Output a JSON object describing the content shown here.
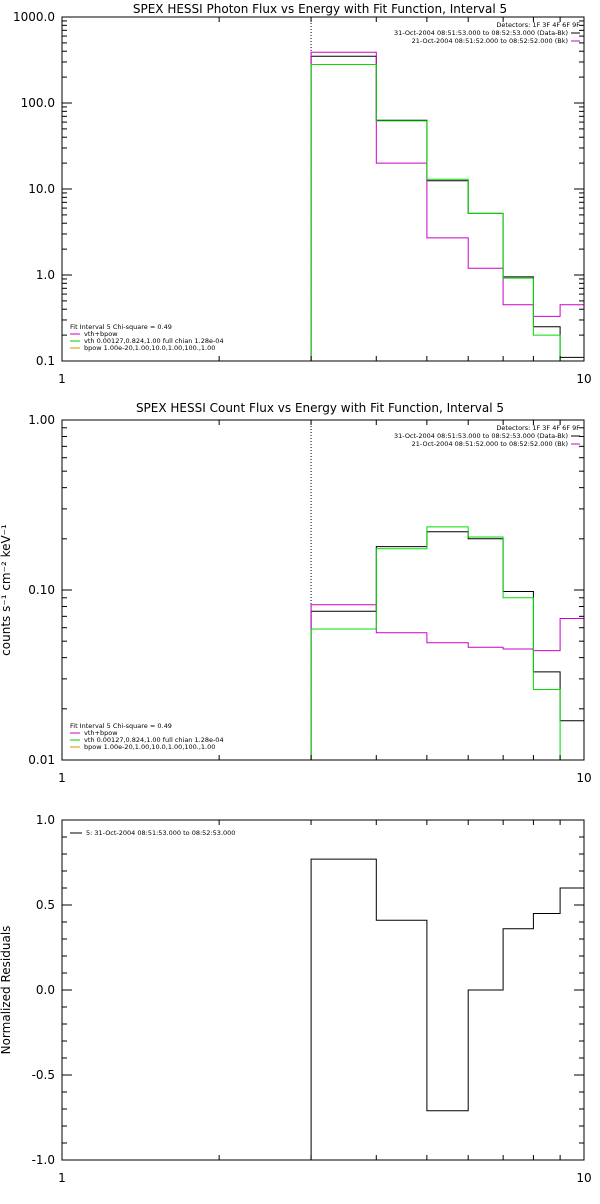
{
  "colors": {
    "background": "#ffffff",
    "axes": "#000000",
    "data": "#000000",
    "model": "#00dd00",
    "background_model": "#cc00cc",
    "vth_legend": "#00cc00",
    "bpow_legend": "#cc9900"
  },
  "chart_data": [
    {
      "type": "line",
      "style": "step",
      "title": "SPEX HESSI Photon Flux vs Energy with Fit Function, Interval 5",
      "xlabel": "",
      "ylabel": "",
      "xscale": "log",
      "yscale": "log",
      "xlim": [
        1,
        10
      ],
      "ylim": [
        0.1,
        1000
      ],
      "x_ticks": [
        "1",
        "10"
      ],
      "y_ticks": [
        "0.1",
        "1.0",
        "10.0",
        "100.0",
        "1000.0"
      ],
      "vline_x": 3,
      "edges": [
        3,
        4,
        5,
        6,
        7,
        8,
        9,
        10
      ],
      "series": [
        {
          "color": "#000000",
          "values": [
            350,
            63,
            12.5,
            5.2,
            0.95,
            0.25,
            0.11
          ]
        },
        {
          "color": "#cc00cc",
          "values": [
            390,
            20,
            2.7,
            1.2,
            0.45,
            0.33,
            0.45
          ]
        },
        {
          "color": "#00dd00",
          "values": [
            280,
            62,
            13,
            5.2,
            0.92,
            0.2,
            0.1
          ]
        }
      ],
      "legend_top": [
        "Detectors: 1F 3F 4F 6F 9F",
        "31-Oct-2004 08:51:53.000 to 08:52:53.000 (Data-Bk)",
        "21-Oct-2004 08:51:52.000 to 08:52:52.000 (Bk)"
      ],
      "legend_bottom": [
        "Fit Interval 5   Chi-square = 0.49",
        "vth+bpow",
        "vth 0.00127,0.824,1.00  full chian 1.28e-04",
        "bpow 1.00e-20,1.00,10.0,1.00,100.,1.00"
      ]
    },
    {
      "type": "line",
      "style": "step",
      "title": "SPEX HESSI Count Flux vs Energy with Fit Function, Interval 5",
      "xlabel": "",
      "ylabel": "counts s⁻¹ cm⁻² keV⁻¹",
      "xscale": "log",
      "yscale": "log",
      "xlim": [
        1,
        10
      ],
      "ylim": [
        0.01,
        1
      ],
      "x_ticks": [
        "1",
        "10"
      ],
      "y_ticks": [
        "0.01",
        "0.10",
        "1.00"
      ],
      "vline_x": 3,
      "edges": [
        3,
        4,
        5,
        6,
        7,
        8,
        9,
        10
      ],
      "series": [
        {
          "color": "#000000",
          "values": [
            0.075,
            0.18,
            0.22,
            0.2,
            0.098,
            0.033,
            0.017
          ]
        },
        {
          "color": "#cc00cc",
          "values": [
            0.082,
            0.056,
            0.049,
            0.046,
            0.045,
            0.044,
            0.068
          ]
        },
        {
          "color": "#00dd00",
          "values": [
            0.059,
            0.175,
            0.235,
            0.205,
            0.09,
            0.026,
            0.0
          ]
        }
      ],
      "legend_top": [
        "Detectors: 1F 3F 4F 6F 9F",
        "31-Oct-2004 08:51:53.000 to 08:52:53.000 (Data-Bk)",
        "21-Oct-2004 08:51:52.000 to 08:52:52.000 (Bk)"
      ],
      "legend_bottom": [
        "Fit Interval 5   Chi-square = 0.49",
        "vth+bpow",
        "vth 0.00127,0.824,1.00  full chian 1.28e-04",
        "bpow 1.00e-20,1.00,10.0,1.00,100.,1.00"
      ]
    },
    {
      "type": "line",
      "style": "step",
      "title": "",
      "xlabel": "",
      "ylabel": "Normalized Residuals",
      "xscale": "log",
      "yscale": "linear",
      "xlim": [
        1,
        10
      ],
      "ylim": [
        -1.0,
        1.0
      ],
      "x_ticks": [
        "1",
        "10"
      ],
      "y_ticks": [
        "-1.0",
        "-0.5",
        "0.0",
        "0.5",
        "1.0"
      ],
      "edges": [
        3,
        4,
        5,
        6,
        7,
        8,
        9,
        10
      ],
      "series": [
        {
          "color": "#000000",
          "values": [
            0.77,
            0.41,
            -0.71,
            0.0,
            0.36,
            0.45,
            0.6
          ]
        }
      ],
      "legend": "5: 31-Oct-2004 08:51:53.000 to 08:52:53.000"
    }
  ]
}
